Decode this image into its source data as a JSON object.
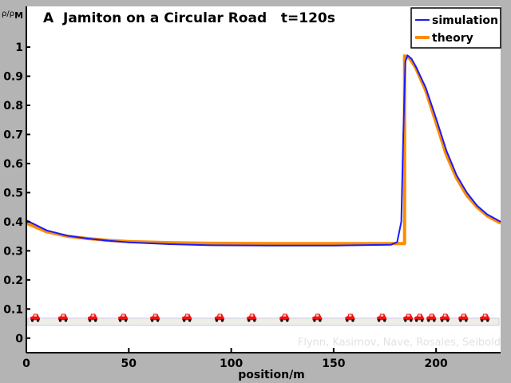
{
  "chart_data": {
    "type": "line",
    "title": "A  Jamiton on a Circular Road   t=120s",
    "xlabel": "position/m",
    "ylabel": "ρ/ρ",
    "ylabel_sub": "M",
    "xlim": [
      0,
      231.5
    ],
    "ylim": [
      -0.05,
      1.14
    ],
    "xticks": [
      0,
      50,
      100,
      150,
      200
    ],
    "yticks": [
      0,
      0.1,
      0.2,
      0.3,
      0.4,
      0.5,
      0.6,
      0.7,
      0.8,
      0.9,
      1
    ],
    "ytick_labels": [
      "0",
      "0.1",
      "0.2",
      "0.3",
      "0.4",
      "0.5",
      "0.6",
      "0.7",
      "0.8",
      "0.9",
      "1"
    ],
    "grid": false,
    "legend_position": "top-right",
    "series": [
      {
        "name": "simulation",
        "color": "#1a1aff",
        "x": [
          0,
          10,
          20,
          30,
          40,
          50,
          70,
          90,
          120,
          150,
          178,
          181,
          183,
          184,
          185,
          186,
          188,
          190,
          195,
          200,
          205,
          210,
          215,
          220,
          225,
          231.5
        ],
        "y": [
          0.405,
          0.37,
          0.352,
          0.342,
          0.335,
          0.329,
          0.323,
          0.319,
          0.318,
          0.318,
          0.321,
          0.33,
          0.4,
          0.7,
          0.95,
          0.972,
          0.96,
          0.935,
          0.86,
          0.755,
          0.645,
          0.56,
          0.5,
          0.455,
          0.425,
          0.4
        ]
      },
      {
        "name": "theory",
        "color": "#ff8c00",
        "x": [
          0,
          10,
          20,
          30,
          40,
          50,
          70,
          90,
          120,
          150,
          184.6,
          184.6,
          187,
          190,
          195,
          200,
          205,
          210,
          215,
          220,
          225,
          231.5
        ],
        "y": [
          0.395,
          0.365,
          0.35,
          0.342,
          0.336,
          0.332,
          0.328,
          0.326,
          0.325,
          0.325,
          0.325,
          0.97,
          0.962,
          0.93,
          0.85,
          0.74,
          0.63,
          0.55,
          0.49,
          0.45,
          0.42,
          0.395
        ]
      }
    ],
    "cars": {
      "y": 0.07,
      "positions": [
        4.3,
        17.9,
        32.4,
        47.2,
        62.8,
        78.4,
        94.3,
        110,
        126,
        142,
        158,
        173.5,
        186.4,
        191.8,
        197.7,
        204.3,
        213.3,
        223.8
      ]
    },
    "road_y": 0.055,
    "credit": "Flynn, Kasimov, Nave, Rosales, Seibold"
  }
}
